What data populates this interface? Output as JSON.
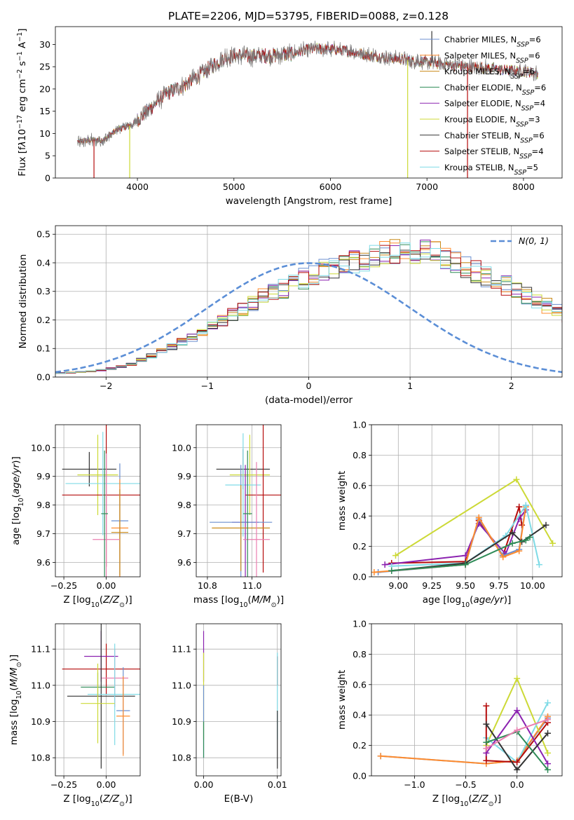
{
  "figure": {
    "title": "PLATE=2206, MJD=53795, FIBERID=0088, z=0.128"
  },
  "colors": {
    "chabrier_miles": "#6b8fcf",
    "salpeter_miles": "#ff8c2e",
    "kroupa_miles": "#c98a1a",
    "chabrier_elodie": "#2e8b57",
    "salpeter_elodie": "#8b22b0",
    "kroupa_elodie": "#ccd936",
    "chabrier_stelib": "#333333",
    "salpeter_stelib": "#b50b0b",
    "kroupa_stelib": "#7fdbe6",
    "extra_pink": "#ea7fb0",
    "gauss_line": "#5b8ed6",
    "spectrum_grey": "#7f7f7f"
  },
  "chart_data": [
    {
      "type": "line",
      "panel": "spectrum",
      "title": "PLATE=2206, MJD=53795, FIBERID=0088, z=0.128",
      "xlabel": "wavelength [Angstrom, rest frame]",
      "ylabel": "Flux [f",
      "xlim": [
        3150,
        8400
      ],
      "ylim": [
        0,
        34
      ],
      "xticks": [
        4000,
        5000,
        6000,
        7000,
        8000
      ],
      "yticks": [
        0,
        5,
        10,
        15,
        20,
        25,
        30
      ],
      "grid": false,
      "legend_position": "upper right",
      "legend": [
        {
          "model": "Chabrier MILES",
          "nssp": "6"
        },
        {
          "model": "Salpeter MILES",
          "nssp": "6"
        },
        {
          "model": "Kroupa MILES",
          "nssp": "6"
        },
        {
          "model": "Chabrier ELODIE",
          "nssp": "6"
        },
        {
          "model": "Salpeter ELODIE",
          "nssp": "4"
        },
        {
          "model": "Kroupa ELODIE",
          "nssp": "3"
        },
        {
          "model": "Chabrier STELIB",
          "nssp": "6"
        },
        {
          "model": "Salpeter STELIB",
          "nssp": "4"
        },
        {
          "model": "Kroupa STELIB",
          "nssp": "5"
        }
      ],
      "continuum": {
        "x": [
          3380,
          3500,
          3650,
          3800,
          3950,
          4100,
          4300,
          4500,
          4700,
          4900,
          5000,
          5200,
          5400,
          5600,
          5800,
          6000,
          6200,
          6400,
          6600,
          6800,
          7000,
          7200,
          7400,
          7600,
          7800,
          8000,
          8150
        ],
        "y": [
          8,
          8.5,
          8.5,
          11,
          12,
          15,
          19,
          21,
          24,
          27,
          27.5,
          27.5,
          27.5,
          28,
          29,
          29,
          28.5,
          27.5,
          27,
          26.5,
          26,
          25.5,
          25,
          24.8,
          24.2,
          24,
          23.5
        ]
      },
      "spikes": [
        {
          "x": 3550,
          "y": 0
        },
        {
          "x": 3920,
          "y": 0
        },
        {
          "x": 6800,
          "y": 0
        },
        {
          "x": 7420,
          "y": 0
        },
        {
          "x": 7050,
          "y": 33
        }
      ]
    },
    {
      "type": "line",
      "panel": "residual_histogram",
      "xlabel": "(data-model)/error",
      "ylabel": "Normed distribution",
      "xlim": [
        -2.5,
        2.5
      ],
      "ylim": [
        0,
        0.53
      ],
      "xticks": [
        -2,
        -1,
        0,
        1,
        2
      ],
      "yticks": [
        0.0,
        0.1,
        0.2,
        0.3,
        0.4,
        0.5
      ],
      "grid": true,
      "legend_position": "upper right",
      "gauss_label": "N(0, 1)",
      "bin_width": 0.1,
      "bin_start": -2.5,
      "histogram": [
        0.014,
        0.016,
        0.018,
        0.02,
        0.024,
        0.03,
        0.036,
        0.046,
        0.06,
        0.075,
        0.09,
        0.105,
        0.125,
        0.14,
        0.16,
        0.178,
        0.2,
        0.22,
        0.24,
        0.26,
        0.28,
        0.295,
        0.31,
        0.33,
        0.345,
        0.36,
        0.375,
        0.385,
        0.395,
        0.405,
        0.415,
        0.42,
        0.43,
        0.435,
        0.44,
        0.445,
        0.44,
        0.43,
        0.41,
        0.395,
        0.38,
        0.37,
        0.355,
        0.34,
        0.32,
        0.3,
        0.285,
        0.27,
        0.25,
        0.235,
        0.215,
        0.2,
        0.185,
        0.17,
        0.155,
        0.138,
        0.122,
        0.108,
        0.095,
        0.083,
        0.072,
        0.062,
        0.053,
        0.046,
        0.04,
        0.034,
        0.03,
        0.026,
        0.023,
        0.02
      ],
      "series_models": [
        "Chabrier MILES",
        "Salpeter MILES",
        "Kroupa MILES",
        "Chabrier ELODIE",
        "Salpeter ELODIE",
        "Kroupa ELODIE",
        "Chabrier STELIB",
        "Salpeter STELIB",
        "Kroupa STELIB"
      ]
    },
    {
      "type": "scatter",
      "panel": "age_vs_Z",
      "xlabel": "Z [log",
      "ylabel": "age  [log",
      "xlim": [
        -0.3,
        0.2
      ],
      "ylim": [
        9.55,
        10.08
      ],
      "xticks": [
        -0.25,
        0.0
      ],
      "yticks": [
        9.6,
        9.7,
        9.8,
        9.9,
        10.0
      ],
      "grid": true,
      "errorbars": [
        {
          "x": -0.1,
          "xerr": 0.16,
          "y": 9.925,
          "yerr": 0.06,
          "color": "chabrier_stelib"
        },
        {
          "x": -0.05,
          "xerr": 0.12,
          "y": 9.905,
          "yerr": 0.14,
          "color": "kroupa_elodie"
        },
        {
          "x": 0.0,
          "xerr": 0.26,
          "y": 9.835,
          "yerr": 0.25,
          "color": "salpeter_stelib"
        },
        {
          "x": -0.02,
          "xerr": 0.22,
          "y": 9.875,
          "yerr": 0.18,
          "color": "kroupa_stelib"
        },
        {
          "x": 0.08,
          "xerr": 0.05,
          "y": 9.745,
          "yerr": 0.2,
          "color": "chabrier_miles"
        },
        {
          "x": 0.08,
          "xerr": 0.05,
          "y": 9.72,
          "yerr": 0.17,
          "color": "salpeter_miles"
        },
        {
          "x": 0.08,
          "xerr": 0.05,
          "y": 9.705,
          "yerr": 0.15,
          "color": "kroupa_miles"
        },
        {
          "x": 0.0,
          "xerr": 0.08,
          "y": 9.68,
          "yerr": 0.3,
          "color": "extra_pink"
        },
        {
          "x": -0.01,
          "xerr": 0.02,
          "y": 9.77,
          "yerr": 0.22,
          "color": "chabrier_elodie"
        }
      ]
    },
    {
      "type": "scatter",
      "panel": "age_vs_mass",
      "xlabel": "mass [log",
      "xlim": [
        10.75,
        11.13
      ],
      "ylim": [
        9.55,
        10.08
      ],
      "xticks": [
        10.8,
        11.0
      ],
      "yticks": [
        9.6,
        9.7,
        9.8,
        9.9,
        10.0
      ],
      "grid": true,
      "errorbars": [
        {
          "x": 10.96,
          "xerr": 0.12,
          "y": 9.925,
          "yerr": 0.07,
          "color": "chabrier_stelib"
        },
        {
          "x": 10.99,
          "xerr": 0.09,
          "y": 9.905,
          "yerr": 0.14,
          "color": "kroupa_elodie"
        },
        {
          "x": 11.05,
          "xerr": 0.08,
          "y": 9.835,
          "yerr": 0.27,
          "color": "salpeter_stelib"
        },
        {
          "x": 10.96,
          "xerr": 0.08,
          "y": 9.87,
          "yerr": 0.18,
          "color": "kroupa_stelib"
        },
        {
          "x": 10.97,
          "xerr": 0.06,
          "y": 9.74,
          "yerr": 0.2,
          "color": "salpeter_elodie"
        },
        {
          "x": 10.95,
          "xerr": 0.14,
          "y": 9.74,
          "yerr": 0.2,
          "color": "chabrier_miles"
        },
        {
          "x": 10.95,
          "xerr": 0.13,
          "y": 9.72,
          "yerr": 0.15,
          "color": "kroupa_miles"
        },
        {
          "x": 11.02,
          "xerr": 0.06,
          "y": 9.68,
          "yerr": 0.27,
          "color": "extra_pink"
        },
        {
          "x": 10.98,
          "xerr": 0.02,
          "y": 9.77,
          "yerr": 0.22,
          "color": "chabrier_elodie"
        }
      ]
    },
    {
      "type": "line",
      "panel": "mass_weight_vs_age",
      "xlabel": "age  [log",
      "ylabel": "mass weight",
      "xlim": [
        8.8,
        10.22
      ],
      "ylim": [
        0,
        1
      ],
      "xticks": [
        9.0,
        9.25,
        9.5,
        9.75,
        10.0
      ],
      "yticks": [
        0.0,
        0.2,
        0.4,
        0.6,
        0.8,
        1.0
      ],
      "grid": true,
      "series": [
        {
          "color": "kroupa_elodie",
          "x": [
            8.98,
            9.88,
            10.15
          ],
          "y": [
            0.14,
            0.64,
            0.22
          ]
        },
        {
          "color": "salpeter_stelib",
          "x": [
            8.95,
            9.5,
            9.6,
            9.78,
            9.9,
            9.92
          ],
          "y": [
            0.09,
            0.1,
            0.37,
            0.14,
            0.46,
            0.34
          ]
        },
        {
          "color": "salpeter_elodie",
          "x": [
            8.9,
            9.5,
            9.6,
            9.8,
            9.9,
            9.95
          ],
          "y": [
            0.08,
            0.14,
            0.35,
            0.15,
            0.38,
            0.44
          ]
        },
        {
          "color": "chabrier_miles",
          "x": [
            8.85,
            9.5,
            9.6,
            9.78,
            9.9,
            9.95
          ],
          "y": [
            0.03,
            0.08,
            0.38,
            0.14,
            0.18,
            0.47
          ]
        },
        {
          "color": "salpeter_miles",
          "x": [
            8.82,
            9.5,
            9.6,
            9.78,
            9.9,
            9.95
          ],
          "y": [
            0.03,
            0.08,
            0.39,
            0.13,
            0.17,
            0.46
          ]
        },
        {
          "color": "kroupa_stelib",
          "x": [
            8.95,
            9.5,
            9.8,
            9.95,
            10.05
          ],
          "y": [
            0.07,
            0.09,
            0.27,
            0.47,
            0.08
          ]
        },
        {
          "color": "chabrier_stelib",
          "x": [
            8.95,
            9.5,
            9.85,
            9.92,
            10.1
          ],
          "y": [
            0.04,
            0.09,
            0.29,
            0.23,
            0.34
          ]
        },
        {
          "color": "chabrier_elodie",
          "x": [
            8.95,
            9.5,
            9.85,
            9.95,
            9.98
          ],
          "y": [
            0.04,
            0.08,
            0.22,
            0.24,
            0.26
          ]
        }
      ]
    },
    {
      "type": "scatter",
      "panel": "mass_vs_Z",
      "xlabel": "Z [log",
      "ylabel": "mass [log",
      "xlim": [
        -0.3,
        0.2
      ],
      "ylim": [
        10.75,
        11.17
      ],
      "xticks": [
        -0.25,
        0.0
      ],
      "yticks": [
        10.8,
        10.9,
        11.0,
        11.1
      ],
      "grid": true,
      "errorbars": [
        {
          "x": 0.0,
          "xerr": 0.26,
          "y": 11.045,
          "yerr": 0.07,
          "color": "salpeter_stelib"
        },
        {
          "x": -0.03,
          "xerr": 0.1,
          "y": 11.08,
          "yerr": 0.07,
          "color": "salpeter_elodie"
        },
        {
          "x": 0.05,
          "xerr": 0.08,
          "y": 11.02,
          "yerr": 0.08,
          "color": "extra_pink"
        },
        {
          "x": -0.05,
          "xerr": 0.1,
          "y": 10.995,
          "yerr": 0.04,
          "color": "chabrier_elodie"
        },
        {
          "x": -0.03,
          "xerr": 0.2,
          "y": 10.97,
          "yerr": 0.2,
          "color": "chabrier_stelib"
        },
        {
          "x": 0.05,
          "xerr": 0.16,
          "y": 10.975,
          "yerr": 0.14,
          "color": "kroupa_stelib"
        },
        {
          "x": -0.05,
          "xerr": 0.1,
          "y": 10.95,
          "yerr": 0.11,
          "color": "kroupa_elodie"
        },
        {
          "x": 0.1,
          "xerr": 0.04,
          "y": 10.93,
          "yerr": 0.12,
          "color": "chabrier_miles"
        },
        {
          "x": 0.1,
          "xerr": 0.04,
          "y": 10.915,
          "yerr": 0.11,
          "color": "salpeter_miles"
        }
      ]
    },
    {
      "type": "scatter",
      "panel": "mass_vs_EBV",
      "xlabel": "E(B-V)",
      "xlim": [
        -0.001,
        0.0105
      ],
      "ylim": [
        10.75,
        11.17
      ],
      "xticks": [
        0.0,
        0.01
      ],
      "yticks": [
        10.8,
        10.9,
        11.0,
        11.1
      ],
      "grid": true,
      "errorbars": [
        {
          "x": 0.0,
          "xerr": 0,
          "y": 11.08,
          "yerr": 0.07,
          "color": "salpeter_elodie"
        },
        {
          "x": 0.0,
          "xerr": 0,
          "y": 10.97,
          "yerr": 0.12,
          "color": "kroupa_elodie"
        },
        {
          "x": 0.0,
          "xerr": 0,
          "y": 10.9,
          "yerr": 0.1,
          "color": "chabrier_miles"
        },
        {
          "x": 0.0,
          "xerr": 0,
          "y": 10.85,
          "yerr": 0.05,
          "color": "chabrier_elodie"
        },
        {
          "x": 0.01,
          "xerr": 0,
          "y": 11.04,
          "yerr": 0.04,
          "color": "salpeter_stelib"
        },
        {
          "x": 0.01,
          "xerr": 0,
          "y": 10.97,
          "yerr": 0.12,
          "color": "kroupa_stelib"
        },
        {
          "x": 0.01,
          "xerr": 0,
          "y": 10.85,
          "yerr": 0.08,
          "color": "chabrier_stelib"
        }
      ]
    },
    {
      "type": "line",
      "panel": "mass_weight_vs_Z",
      "xlabel": "Z [log",
      "ylabel": "mass weight",
      "xlim": [
        -1.42,
        0.44
      ],
      "ylim": [
        0,
        1
      ],
      "xticks": [
        -1.0,
        -0.5,
        0.0
      ],
      "yticks": [
        0.0,
        0.2,
        0.4,
        0.6,
        0.8,
        1.0
      ],
      "grid": true,
      "series": [
        {
          "color": "chabrier_miles",
          "x": [
            -1.33,
            -0.3,
            0.0,
            0.3
          ],
          "y": [
            0.13,
            0.08,
            0.1,
            0.38
          ]
        },
        {
          "color": "salpeter_miles",
          "x": [
            -1.33,
            -0.3,
            0.0,
            0.3
          ],
          "y": [
            0.13,
            0.08,
            0.1,
            0.39
          ]
        },
        {
          "color": "kroupa_elodie",
          "x": [
            -0.3,
            0.0,
            0.3
          ],
          "y": [
            0.2,
            0.64,
            0.15
          ]
        },
        {
          "color": "kroupa_stelib",
          "x": [
            -0.3,
            0.0,
            0.3
          ],
          "y": [
            0.25,
            0.09,
            0.48
          ]
        },
        {
          "color": "salpeter_stelib",
          "x": [
            -0.3,
            -0.3,
            0.0,
            0.3
          ],
          "y": [
            0.46,
            0.1,
            0.09,
            0.35
          ]
        },
        {
          "color": "salpeter_elodie",
          "x": [
            -0.3,
            0.0,
            0.3
          ],
          "y": [
            0.15,
            0.43,
            0.08
          ]
        },
        {
          "color": "chabrier_stelib",
          "x": [
            -0.3,
            0.0,
            0.3
          ],
          "y": [
            0.34,
            0.04,
            0.28
          ]
        },
        {
          "color": "chabrier_elodie",
          "x": [
            -0.3,
            0.0,
            0.3
          ],
          "y": [
            0.22,
            0.29,
            0.04
          ]
        },
        {
          "color": "extra_pink",
          "x": [
            -0.3,
            0.0,
            0.3
          ],
          "y": [
            0.18,
            0.3,
            0.37
          ]
        }
      ]
    }
  ]
}
